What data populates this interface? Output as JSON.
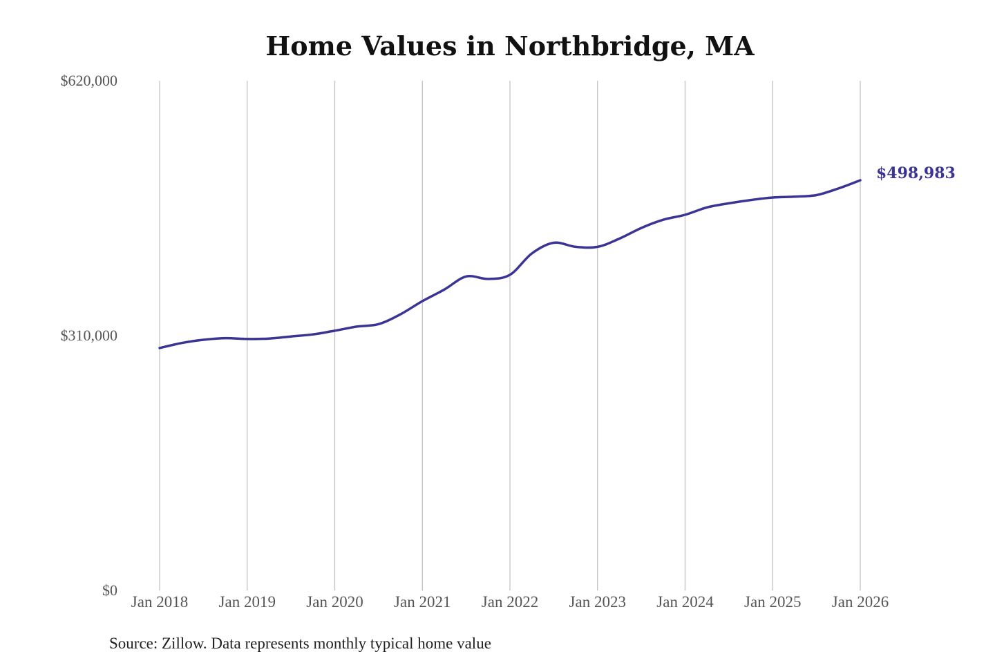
{
  "chart_data": {
    "type": "line",
    "title": "Home Values in Northbridge, MA",
    "xlabel": "",
    "ylabel": "",
    "ylim": [
      0,
      620000
    ],
    "y_ticks": [
      {
        "value": 0,
        "label": "$0"
      },
      {
        "value": 310000,
        "label": "$310,000"
      },
      {
        "value": 620000,
        "label": "$620,000"
      }
    ],
    "x_ticks": [
      {
        "value": "2018-01",
        "label": "Jan 2018"
      },
      {
        "value": "2019-01",
        "label": "Jan 2019"
      },
      {
        "value": "2020-01",
        "label": "Jan 2020"
      },
      {
        "value": "2021-01",
        "label": "Jan 2021"
      },
      {
        "value": "2022-01",
        "label": "Jan 2022"
      },
      {
        "value": "2023-01",
        "label": "Jan 2023"
      },
      {
        "value": "2024-01",
        "label": "Jan 2024"
      },
      {
        "value": "2025-01",
        "label": "Jan 2025"
      },
      {
        "value": "2026-01",
        "label": "Jan 2026"
      }
    ],
    "grid": "vertical",
    "line_color": "#3a3494",
    "series": [
      {
        "x": [
          "2018-01",
          "2018-04",
          "2018-07",
          "2018-10",
          "2019-01",
          "2019-04",
          "2019-07",
          "2019-10",
          "2020-01",
          "2020-04",
          "2020-07",
          "2020-10",
          "2021-01",
          "2021-04",
          "2021-07",
          "2021-10",
          "2022-01",
          "2022-04",
          "2022-07",
          "2022-10",
          "2023-01",
          "2023-04",
          "2023-07",
          "2023-10",
          "2024-01",
          "2024-04",
          "2024-07",
          "2024-10",
          "2025-01",
          "2025-04",
          "2025-07",
          "2025-10",
          "2026-01"
        ],
        "values": [
          295000,
          301000,
          305000,
          307000,
          306000,
          306500,
          309000,
          311500,
          316000,
          321000,
          324000,
          336000,
          352000,
          366000,
          382000,
          379000,
          384000,
          410000,
          423000,
          418000,
          418000,
          428000,
          441000,
          451000,
          457000,
          466000,
          471000,
          475000,
          478000,
          479000,
          481000,
          489000,
          498983
        ]
      }
    ],
    "end_label": "$498,983",
    "source": "Source: Zillow. Data represents monthly typical home value"
  }
}
